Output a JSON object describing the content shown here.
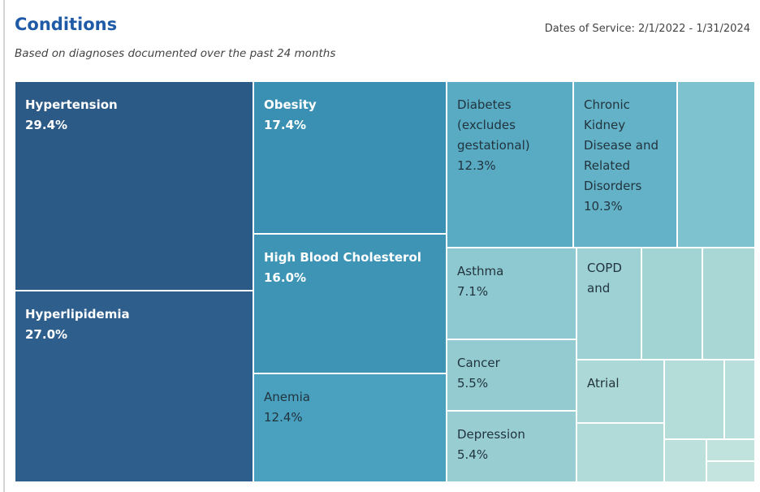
{
  "chart_data": {
    "type": "treemap",
    "title": "Conditions",
    "subtitle": "Based on diagnoses documented over the past 24 months",
    "annotation": "Dates of Service: 2/1/2022 - 1/31/2024",
    "categories": [
      "Hypertension",
      "Hyperlipidemia",
      "Obesity",
      "High Blood Cholesterol",
      "Anemia",
      "Diabetes (excludes gestational)",
      "Chronic Kidney Disease and Related Disorders",
      null,
      "Asthma",
      "Cancer",
      "Depression",
      "COPD and",
      null,
      null,
      "Atrial",
      null,
      null,
      null,
      null,
      null,
      null
    ],
    "values": [
      29.4,
      27.0,
      17.4,
      16.0,
      12.4,
      12.3,
      10.3,
      7.6,
      7.1,
      5.5,
      5.4,
      4.3,
      4.0,
      3.5,
      3.3,
      3.1,
      2.8,
      1.4,
      1.1,
      0.6,
      0.6
    ],
    "value_labels": [
      "29.4%",
      "27.0%",
      "17.4%",
      "16.0%",
      "12.4%",
      "12.3%",
      "10.3%",
      null,
      "7.1%",
      "5.5%",
      "5.4%",
      null,
      null,
      null,
      null,
      null,
      null,
      null,
      null,
      null,
      null
    ],
    "colors": [
      "#2c5a86",
      "#2e5f8c",
      "#3a90b2",
      "#3d94b5",
      "#4aa0bf",
      "#58abc3",
      "#64b2c7",
      "#7ec1cf",
      "#8ec8d0",
      "#93cbd1",
      "#98ced2",
      "#9dd1d3",
      "#a3d4d4",
      "#a8d7d6",
      "#acd9d7",
      "#b0dbd8",
      "#b4ddda",
      "#b8dfdb",
      "#bce1dc",
      "#c0e3de",
      "#c4e5df"
    ]
  }
}
